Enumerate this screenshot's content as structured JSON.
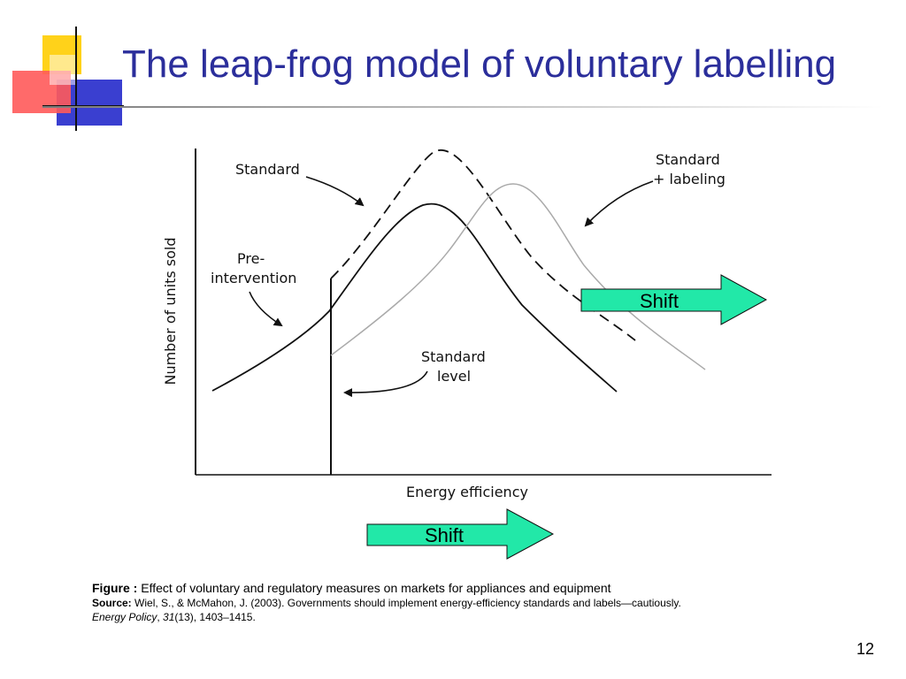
{
  "slide": {
    "title": "The leap-frog model of voluntary labelling",
    "page_number": "12",
    "accent_color": "#2b2e9b"
  },
  "diagram": {
    "y_axis_label": "Number of units sold",
    "x_axis_label": "Energy efficiency",
    "labels": {
      "standard": "Standard",
      "standard_labeling_line1": "Standard",
      "standard_labeling_line2": "+ labeling",
      "pre_intervention_line1": "Pre-",
      "pre_intervention_line2": "intervention",
      "standard_level_line1": "Standard",
      "standard_level_line2": "level"
    },
    "shift_arrow_top": "Shift",
    "shift_arrow_bottom": "Shift",
    "shift_arrow_color": "#22e8a8"
  },
  "caption": {
    "figure_label": "Figure :",
    "figure_text": " Effect of voluntary and regulatory measures on markets for appliances and equipment",
    "source_label": "Source:",
    "source_text": " Wiel, S., & McMahon, J. (2003). Governments should implement energy-efficiency standards and labels—cautiously.",
    "journal": "Energy Policy",
    "volume": "31",
    "issue_pages": "(13), 1403–1415."
  }
}
